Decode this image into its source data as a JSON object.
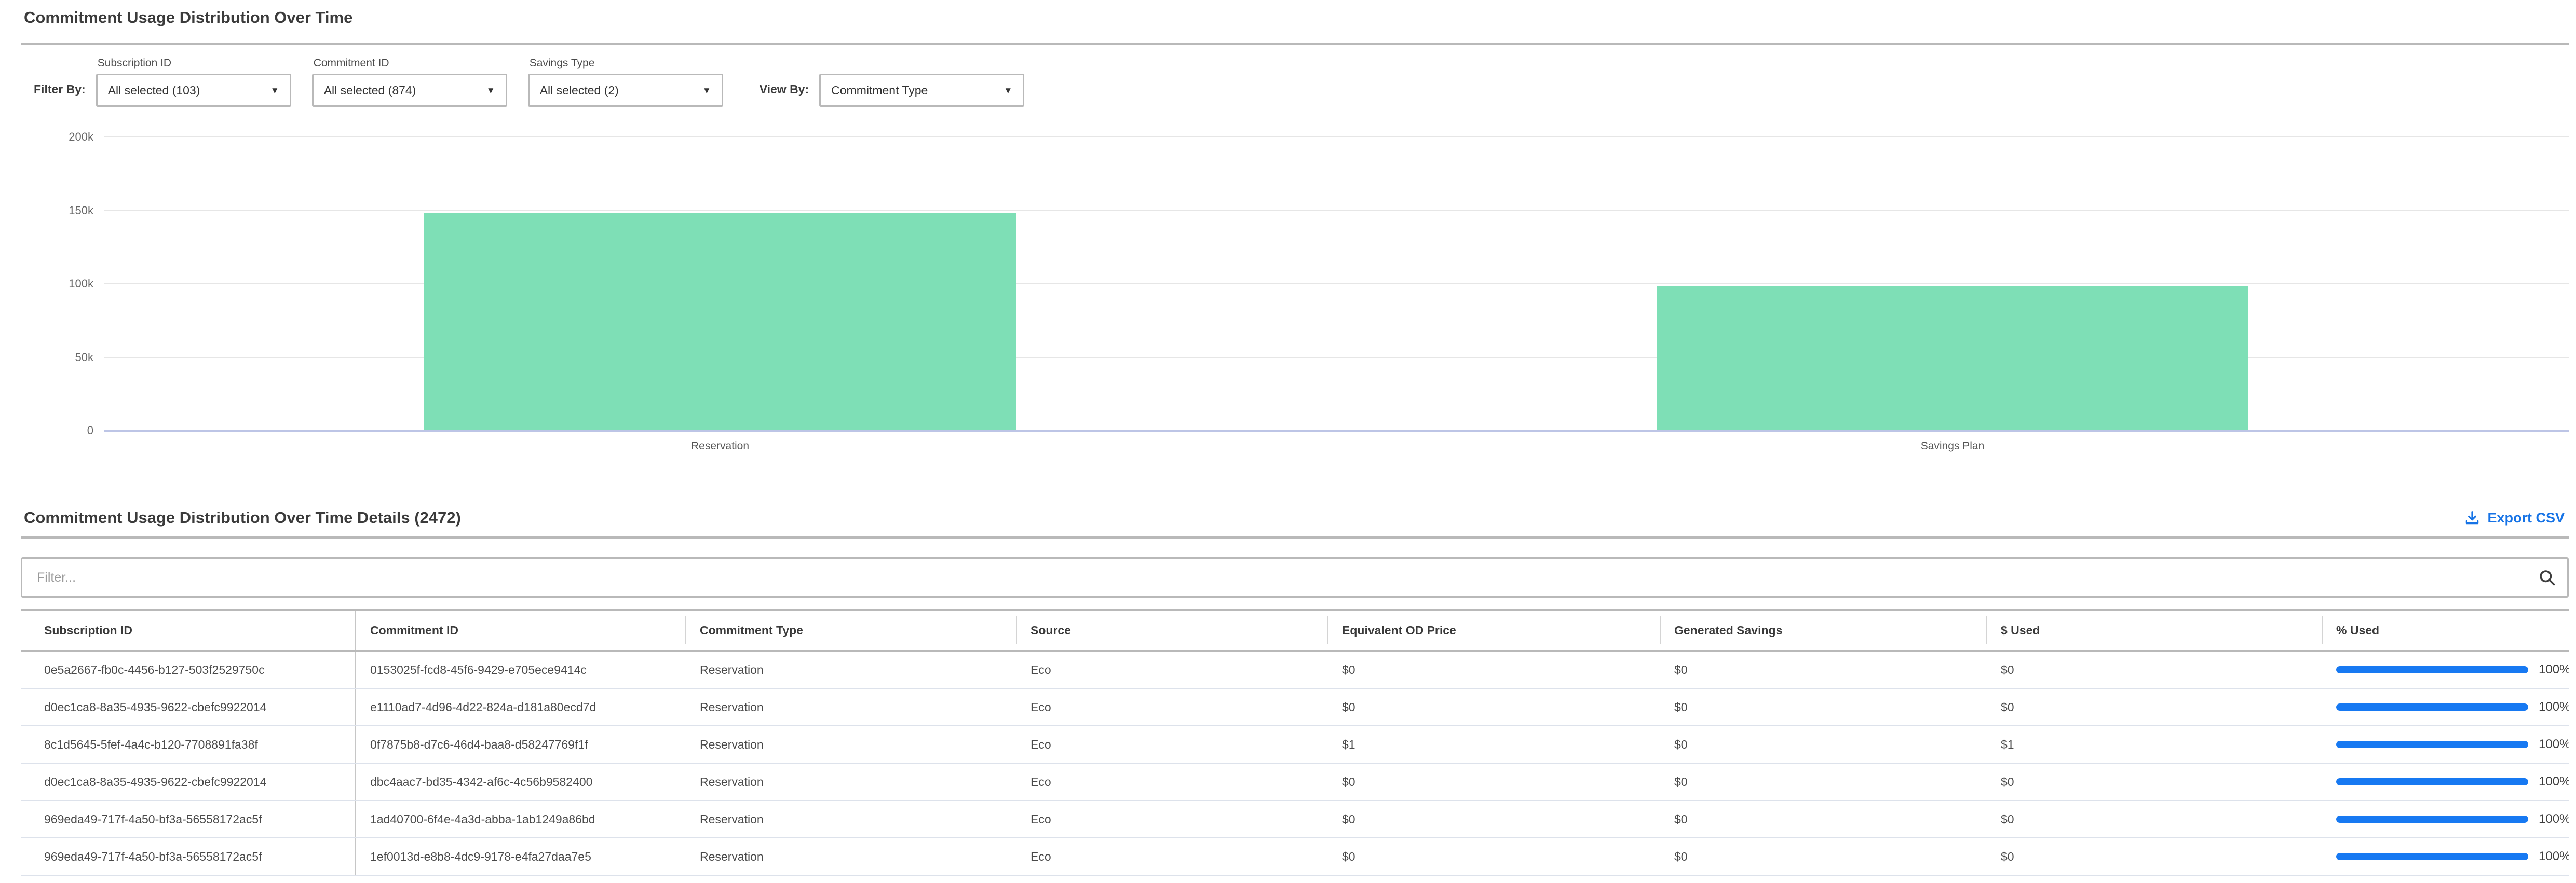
{
  "page": {
    "title": "Commitment Usage Distribution Over Time"
  },
  "filters": {
    "filter_by_label": "Filter By:",
    "view_by_label": "View By:",
    "dropdowns": [
      {
        "label": "Subscription ID",
        "value": "All selected (103)"
      },
      {
        "label": "Commitment ID",
        "value": "All selected (874)"
      },
      {
        "label": "Savings Type",
        "value": "All selected (2)"
      }
    ],
    "view_by": {
      "value": "Commitment Type"
    },
    "caret": "▼"
  },
  "chart_data": {
    "type": "bar",
    "title": "Commitment Usage Distribution Over Time",
    "categories": [
      "Reservation",
      "Savings Plan"
    ],
    "values": [
      148000,
      98500
    ],
    "xlabel": "",
    "ylabel": "",
    "ylim": [
      0,
      200000
    ],
    "yticks": [
      {
        "value": 0,
        "label": "0"
      },
      {
        "value": 50000,
        "label": "50k"
      },
      {
        "value": 100000,
        "label": "100k"
      },
      {
        "value": 150000,
        "label": "150k"
      },
      {
        "value": 200000,
        "label": "200k"
      }
    ],
    "grid": true,
    "legend_position": "none",
    "bar_color": "#7EDFB6"
  },
  "details": {
    "title": "Commitment Usage Distribution Over Time Details (2472)",
    "export_csv_label": "Export CSV",
    "filter_placeholder": "Filter...",
    "columns": [
      "Subscription ID",
      "Commitment ID",
      "Commitment Type",
      "Source",
      "Equivalent OD Price",
      "Generated Savings",
      "$ Used",
      "% Used"
    ],
    "rows": [
      {
        "cells": [
          "0e5a2667-fb0c-4456-b127-503f2529750c",
          "0153025f-fcd8-45f6-9429-e705ece9414c",
          "Reservation",
          "Eco",
          "$0",
          "$0",
          "$0"
        ],
        "used_percent": "100%",
        "used_percent_value": 100
      },
      {
        "cells": [
          "d0ec1ca8-8a35-4935-9622-cbefc9922014",
          "e1110ad7-4d96-4d22-824a-d181a80ecd7d",
          "Reservation",
          "Eco",
          "$0",
          "$0",
          "$0"
        ],
        "used_percent": "100%",
        "used_percent_value": 100
      },
      {
        "cells": [
          "8c1d5645-5fef-4a4c-b120-7708891fa38f",
          "0f7875b8-d7c6-46d4-baa8-d58247769f1f",
          "Reservation",
          "Eco",
          "$1",
          "$0",
          "$1"
        ],
        "used_percent": "100%",
        "used_percent_value": 100
      },
      {
        "cells": [
          "d0ec1ca8-8a35-4935-9622-cbefc9922014",
          "dbc4aac7-bd35-4342-af6c-4c56b9582400",
          "Reservation",
          "Eco",
          "$0",
          "$0",
          "$0"
        ],
        "used_percent": "100%",
        "used_percent_value": 100
      },
      {
        "cells": [
          "969eda49-717f-4a50-bf3a-56558172ac5f",
          "1ad40700-6f4e-4a3d-abba-1ab1249a86bd",
          "Reservation",
          "Eco",
          "$0",
          "$0",
          "$0"
        ],
        "used_percent": "100%",
        "used_percent_value": 100
      },
      {
        "cells": [
          "969eda49-717f-4a50-bf3a-56558172ac5f",
          "1ef0013d-e8b8-4dc9-9178-e4fa27daa7e5",
          "Reservation",
          "Eco",
          "$0",
          "$0",
          "$0"
        ],
        "used_percent": "100%",
        "used_percent_value": 100
      }
    ]
  },
  "colors": {
    "bar_green": "#7EDFB6",
    "progress_blue": "#1779F2",
    "link_blue": "#1673E6",
    "icon_dark": "#3c3c3c"
  }
}
